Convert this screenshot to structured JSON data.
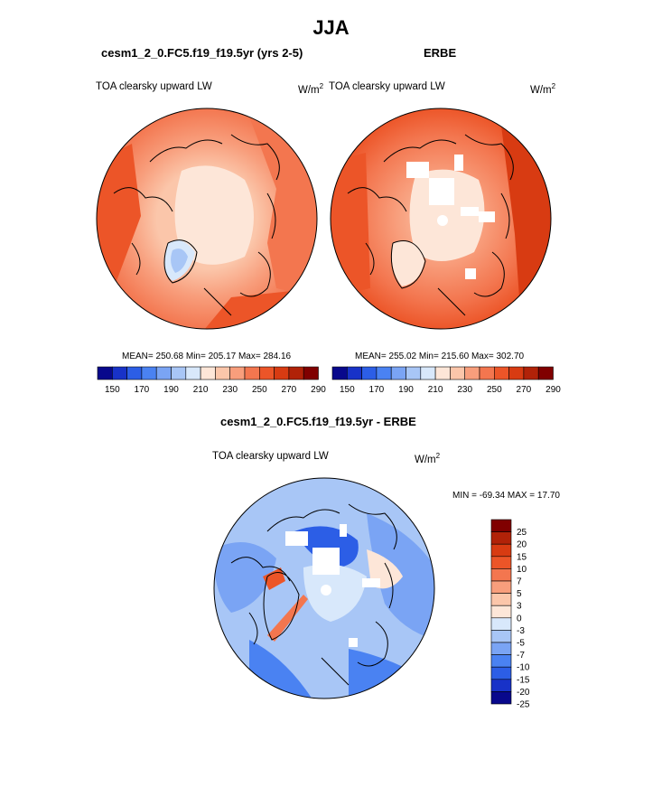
{
  "figure": {
    "title": "JJA"
  },
  "colors": {
    "abs_palette": [
      "#08088c",
      "#1832c8",
      "#2c5ee6",
      "#4a82f2",
      "#7aa4f4",
      "#a8c6f6",
      "#d8e8fb",
      "#fde6d8",
      "#fbc6aa",
      "#f89e7c",
      "#f3764f",
      "#ec5528",
      "#d83b12",
      "#b12208",
      "#800000"
    ],
    "diff_palette": [
      "#08088c",
      "#1832c8",
      "#2c5ee6",
      "#4a82f2",
      "#7aa4f4",
      "#a8c6f6",
      "#d8e8fb",
      "#fde6d8",
      "#fbc6aa",
      "#f89e7c",
      "#f3764f",
      "#ec5528",
      "#d83b12",
      "#b12208",
      "#800000"
    ]
  },
  "chart_data": [
    {
      "type": "heatmap",
      "projection": "polar-stereographic-north",
      "title": "cesm1_2_0.FC5.f19_f19.5yr (yrs 2-5)",
      "left_label": "TOA clearsky upward LW",
      "units_label": "W/m",
      "units_exp": "2",
      "stats": "MEAN= 250.68  Min= 205.17  Max= 284.16",
      "colorbar_ticks": [
        "150",
        "170",
        "190",
        "210",
        "230",
        "250",
        "270",
        "290"
      ]
    },
    {
      "type": "heatmap",
      "projection": "polar-stereographic-north",
      "title": "ERBE",
      "left_label": "TOA clearsky upward LW",
      "units_label": "W/m",
      "units_exp": "2",
      "stats": "MEAN= 255.02  Min= 215.60  Max= 302.70",
      "colorbar_ticks": [
        "150",
        "170",
        "190",
        "210",
        "230",
        "250",
        "270",
        "290"
      ]
    },
    {
      "type": "heatmap",
      "projection": "polar-stereographic-north",
      "title": "cesm1_2_0.FC5.f19_f19.5yr - ERBE",
      "left_label": "TOA clearsky upward LW",
      "units_label": "W/m",
      "units_exp": "2",
      "stats": "MIN = -69.34 MAX =  17.70",
      "colorbar_ticks": [
        "25",
        "20",
        "15",
        "10",
        "7",
        "5",
        "3",
        "0",
        "-3",
        "-5",
        "-7",
        "-10",
        "-15",
        "-20",
        "-25"
      ]
    }
  ]
}
